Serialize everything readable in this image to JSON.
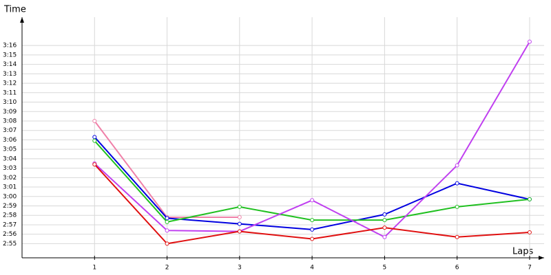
{
  "chart_data": {
    "type": "line",
    "y_label": "Time",
    "x_label": "Laps",
    "x": [
      1,
      2,
      3,
      4,
      5,
      6,
      7
    ],
    "xlim": [
      0,
      7.2
    ],
    "xticks": [
      1,
      2,
      3,
      4,
      5,
      6,
      7
    ],
    "ylim": [
      173.5,
      199
    ],
    "yticks": [
      {
        "value": 175,
        "label": "2:55"
      },
      {
        "value": 176,
        "label": "2:56"
      },
      {
        "value": 177,
        "label": "2:57"
      },
      {
        "value": 178,
        "label": "2:58"
      },
      {
        "value": 179,
        "label": "2:59"
      },
      {
        "value": 180,
        "label": "3:00"
      },
      {
        "value": 181,
        "label": "3:01"
      },
      {
        "value": 182,
        "label": "3:02"
      },
      {
        "value": 183,
        "label": "3:03"
      },
      {
        "value": 184,
        "label": "3:04"
      },
      {
        "value": 185,
        "label": "3:05"
      },
      {
        "value": 186,
        "label": "3:06"
      },
      {
        "value": 187,
        "label": "3:07"
      },
      {
        "value": 188,
        "label": "3:08"
      },
      {
        "value": 189,
        "label": "3:09"
      },
      {
        "value": 190,
        "label": "3:10"
      },
      {
        "value": 191,
        "label": "3:11"
      },
      {
        "value": 192,
        "label": "3:12"
      },
      {
        "value": 193,
        "label": "3:13"
      },
      {
        "value": 194,
        "label": "3:14"
      },
      {
        "value": 195,
        "label": "3:15"
      },
      {
        "value": 196,
        "label": "3:16"
      }
    ],
    "grid": true,
    "series": [
      {
        "color": "#f080a8",
        "values": [
          188.0,
          177.8,
          177.8,
          null,
          null,
          null,
          null
        ]
      },
      {
        "color": "#0000e0",
        "values": [
          186.3,
          177.7,
          177.1,
          176.5,
          178.1,
          181.4,
          179.7
        ]
      },
      {
        "color": "#20c020",
        "values": [
          185.9,
          177.3,
          178.9,
          177.5,
          177.5,
          178.9,
          179.7
        ]
      },
      {
        "color": "#c040f0",
        "values": [
          183.5,
          176.4,
          176.3,
          179.6,
          175.7,
          183.3,
          196.4
        ]
      },
      {
        "color": "#e01010",
        "values": [
          183.4,
          175.0,
          176.3,
          175.5,
          176.7,
          175.7,
          176.2
        ]
      }
    ]
  }
}
